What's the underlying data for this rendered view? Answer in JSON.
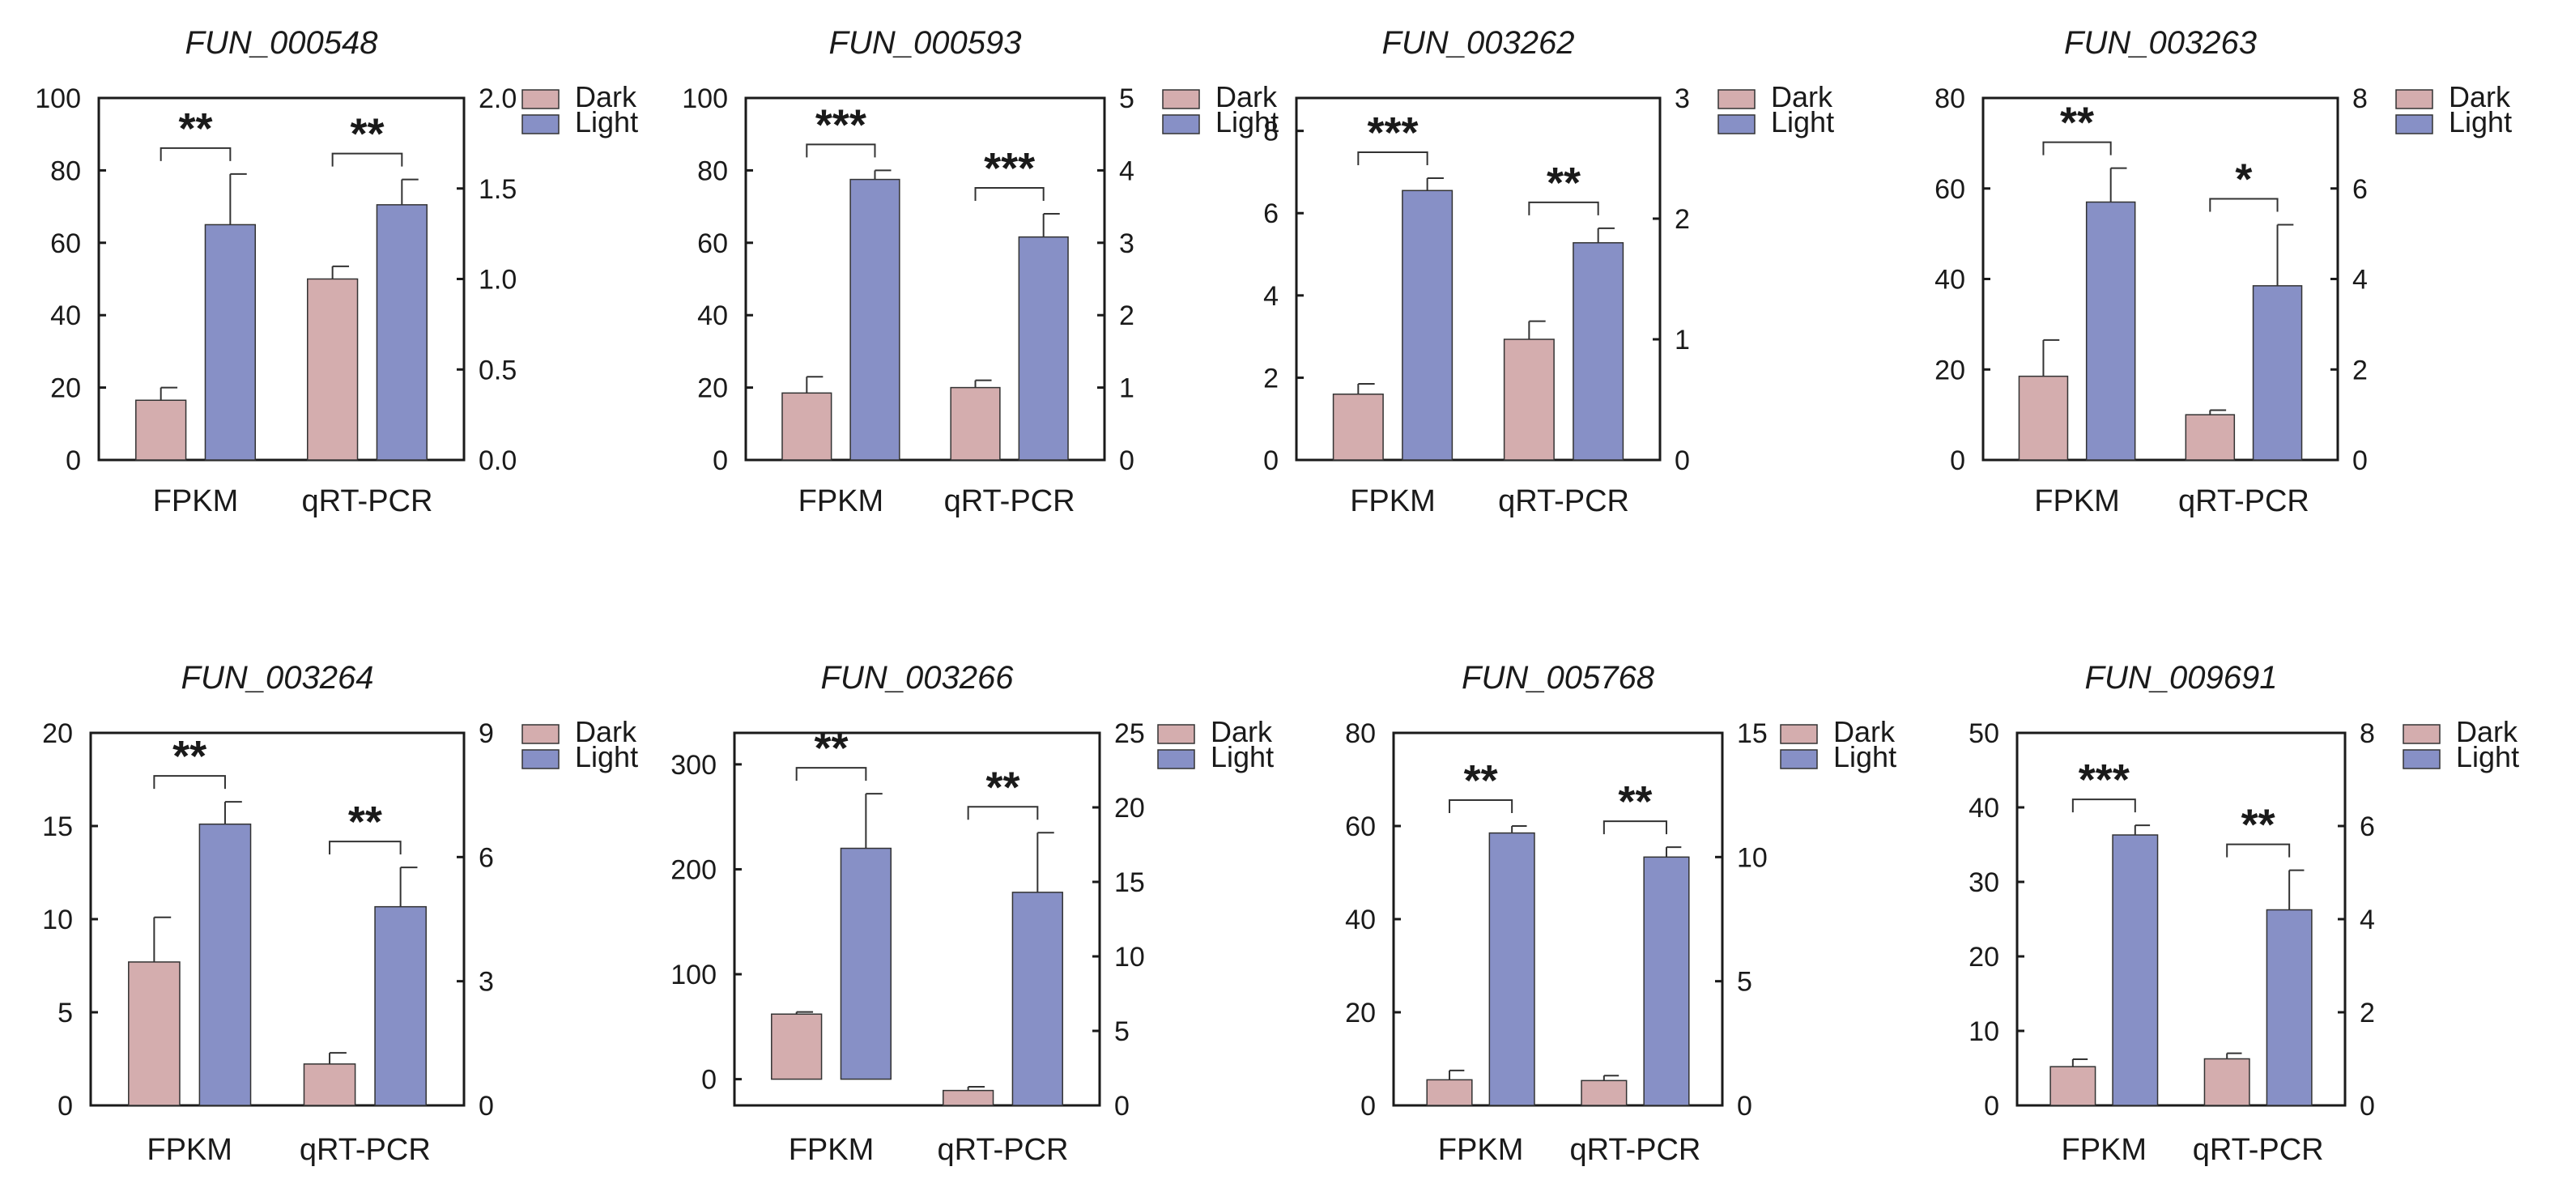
{
  "colors": {
    "dark": "#d4adae",
    "light": "#8790c6",
    "axis": "#1a1a1a"
  },
  "legend": {
    "dark_label": "Dark",
    "light_label": "Light"
  },
  "chart_data": [
    {
      "type": "bar",
      "title": "FUN_000548",
      "categories": [
        "FPKM",
        "qRT-PCR"
      ],
      "left_axis": {
        "range": [
          0,
          100
        ],
        "ticks": [
          "0",
          "20",
          "40",
          "60",
          "80",
          "100"
        ]
      },
      "right_axis": {
        "range": [
          0,
          2.0
        ],
        "ticks": [
          "0.0",
          "0.5",
          "1.0",
          "1.5",
          "2.0"
        ]
      },
      "series": [
        {
          "name": "Dark",
          "values": [
            16.5,
            1.0
          ],
          "errors": [
            3.5,
            0.07
          ]
        },
        {
          "name": "Light",
          "values": [
            65,
            1.41
          ],
          "errors": [
            14,
            0.14
          ]
        }
      ],
      "significance": [
        "**",
        "**"
      ]
    },
    {
      "type": "bar",
      "title": "FUN_000593",
      "categories": [
        "FPKM",
        "qRT-PCR"
      ],
      "left_axis": {
        "range": [
          0,
          100
        ],
        "ticks": [
          "0",
          "20",
          "40",
          "60",
          "80",
          "100"
        ]
      },
      "right_axis": {
        "range": [
          0,
          5
        ],
        "ticks": [
          "0",
          "1",
          "2",
          "3",
          "4",
          "5"
        ]
      },
      "series": [
        {
          "name": "Dark",
          "values": [
            18.5,
            1.0
          ],
          "errors": [
            4.5,
            0.1
          ]
        },
        {
          "name": "Light",
          "values": [
            77.5,
            3.08
          ],
          "errors": [
            2.5,
            0.32
          ]
        }
      ],
      "significance": [
        "***",
        "***"
      ]
    },
    {
      "type": "bar",
      "title": "FUN_003262",
      "categories": [
        "FPKM",
        "qRT-PCR"
      ],
      "left_axis": {
        "range": [
          0,
          8.8
        ],
        "ticks": [
          "0",
          "2",
          "4",
          "6",
          "8"
        ]
      },
      "right_axis": {
        "range": [
          0,
          3
        ],
        "ticks": [
          "0",
          "1",
          "2",
          "3"
        ]
      },
      "series": [
        {
          "name": "Dark",
          "values": [
            1.6,
            1.0
          ],
          "errors": [
            0.25,
            0.15
          ]
        },
        {
          "name": "Light",
          "values": [
            6.55,
            1.8
          ],
          "errors": [
            0.3,
            0.12
          ]
        }
      ],
      "significance": [
        "***",
        "**"
      ]
    },
    {
      "type": "bar",
      "title": "FUN_003263",
      "categories": [
        "FPKM",
        "qRT-PCR"
      ],
      "left_axis": {
        "range": [
          0,
          80
        ],
        "ticks": [
          "0",
          "20",
          "40",
          "60",
          "80"
        ]
      },
      "right_axis": {
        "range": [
          0,
          8
        ],
        "ticks": [
          "0",
          "2",
          "4",
          "6",
          "8"
        ]
      },
      "series": [
        {
          "name": "Dark",
          "values": [
            18.5,
            1.0
          ],
          "errors": [
            8,
            0.1
          ]
        },
        {
          "name": "Light",
          "values": [
            57,
            3.85
          ],
          "errors": [
            7.5,
            1.35
          ]
        }
      ],
      "significance": [
        "**",
        "*"
      ]
    },
    {
      "type": "bar",
      "title": "FUN_003264",
      "categories": [
        "FPKM",
        "qRT-PCR"
      ],
      "left_axis": {
        "range": [
          0,
          20
        ],
        "ticks": [
          "0",
          "5",
          "10",
          "15",
          "20"
        ]
      },
      "right_axis": {
        "range": [
          0,
          9
        ],
        "ticks": [
          "0",
          "3",
          "6",
          "9"
        ]
      },
      "series": [
        {
          "name": "Dark",
          "values": [
            7.7,
            1.0
          ],
          "errors": [
            2.4,
            0.27
          ]
        },
        {
          "name": "Light",
          "values": [
            15.1,
            4.8
          ],
          "errors": [
            1.2,
            0.95
          ]
        }
      ],
      "significance": [
        "**",
        "**"
      ]
    },
    {
      "type": "bar",
      "title": "FUN_003266",
      "categories": [
        "FPKM",
        "qRT-PCR"
      ],
      "left_axis": {
        "range": [
          -25,
          330
        ],
        "ticks": [
          "0",
          "100",
          "200",
          "300"
        ]
      },
      "right_axis": {
        "range": [
          0,
          25
        ],
        "ticks": [
          "0",
          "5",
          "10",
          "15",
          "20",
          "25"
        ]
      },
      "series": [
        {
          "name": "Dark",
          "values": [
            62,
            1.0
          ],
          "errors": [
            2,
            0.25
          ]
        },
        {
          "name": "Light",
          "values": [
            220,
            14.3
          ],
          "errors": [
            52,
            4.0
          ]
        }
      ],
      "significance": [
        "**",
        "**"
      ]
    },
    {
      "type": "bar",
      "title": "FUN_005768",
      "categories": [
        "FPKM",
        "qRT-PCR"
      ],
      "left_axis": {
        "range": [
          0,
          80
        ],
        "ticks": [
          "0",
          "20",
          "40",
          "60",
          "80"
        ]
      },
      "right_axis": {
        "range": [
          0,
          15
        ],
        "ticks": [
          "0",
          "5",
          "10",
          "15"
        ]
      },
      "series": [
        {
          "name": "Dark",
          "values": [
            5.5,
            1.0
          ],
          "errors": [
            2,
            0.2
          ]
        },
        {
          "name": "Light",
          "values": [
            58.5,
            10.0
          ],
          "errors": [
            1.5,
            0.4
          ]
        }
      ],
      "significance": [
        "**",
        "**"
      ]
    },
    {
      "type": "bar",
      "title": "FUN_009691",
      "categories": [
        "FPKM",
        "qRT-PCR"
      ],
      "left_axis": {
        "range": [
          0,
          50
        ],
        "ticks": [
          "0",
          "10",
          "20",
          "30",
          "40",
          "50"
        ]
      },
      "right_axis": {
        "range": [
          0,
          8
        ],
        "ticks": [
          "0",
          "2",
          "4",
          "6",
          "8"
        ]
      },
      "series": [
        {
          "name": "Dark",
          "values": [
            5.2,
            1.0
          ],
          "errors": [
            1,
            0.12
          ]
        },
        {
          "name": "Light",
          "values": [
            36.3,
            4.2
          ],
          "errors": [
            1.3,
            0.85
          ]
        }
      ],
      "significance": [
        "***",
        "**"
      ]
    }
  ]
}
